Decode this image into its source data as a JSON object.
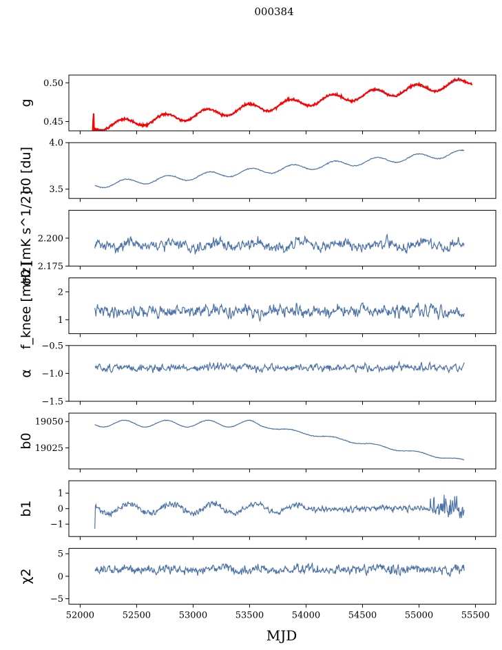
{
  "chart_data": {
    "type": "line",
    "title": "000384",
    "xlabel": "MJD",
    "xlim": [
      51900,
      55680
    ],
    "x_ticks": [
      52000,
      52500,
      53000,
      53500,
      54000,
      54500,
      55000,
      55500
    ],
    "x_tick_labels": [
      "52000",
      "52500",
      "53000",
      "53500",
      "54000",
      "54500",
      "55000",
      "55500"
    ],
    "line_color": "#4c72a8",
    "overlay_color": "#ff0000",
    "panels": [
      {
        "id": "g",
        "ylabel": "g",
        "ylim": [
          0.438,
          0.51
        ],
        "ticks": [
          0.45,
          0.5
        ],
        "tick_labels": [
          "0.45",
          "0.50"
        ],
        "series": [
          {
            "name": "model",
            "gen": "wave",
            "x0": 52120,
            "x1": 55400,
            "seed": 11,
            "p": {
              "a0": 0.442,
              "slope": 1.65e-05,
              "amp": 0.0055,
              "period": 370,
              "phase": 1.4,
              "noise": 0.0004
            }
          },
          {
            "name": "data",
            "gen": "wave",
            "x0": 52110,
            "x1": 55470,
            "seed": 12,
            "p": {
              "a0": 0.441,
              "slope": 1.72e-05,
              "amp": 0.0058,
              "period": 370,
              "phase": 1.4,
              "noise": 0.0012
            }
          }
        ]
      },
      {
        "id": "sigma0_du",
        "ylabel": "σ0 [du]",
        "ylim": [
          3.4,
          4.0
        ],
        "ticks": [
          3.5,
          4.0
        ],
        "tick_labels": [
          "3.5",
          "4.0"
        ],
        "series": [
          {
            "name": "sigma0_du",
            "gen": "wave",
            "x0": 52130,
            "x1": 55400,
            "seed": 21,
            "p": {
              "a0": 3.53,
              "slope": 0.000105,
              "amp": 0.035,
              "period": 370,
              "phase": 1.0,
              "noise": 0.004
            }
          }
        ]
      },
      {
        "id": "sigma0_mk",
        "ylabel": "σ0 [mK s^1/2]",
        "ylim": [
          2.175,
          2.225
        ],
        "ticks": [
          2.175,
          2.2
        ],
        "tick_labels": [
          "2.175",
          "2.200"
        ],
        "series": [
          {
            "name": "sigma0_mk",
            "gen": "noise",
            "x0": 52130,
            "x1": 55400,
            "seed": 31,
            "p": {
              "mean": 2.194,
              "sd": 0.0035,
              "amp": 0.002,
              "period": 370
            }
          }
        ]
      },
      {
        "id": "fknee",
        "ylabel": "f_knee [mHz]",
        "ylim": [
          0.5,
          2.5
        ],
        "ticks": [
          1,
          2
        ],
        "tick_labels": [
          "1",
          "2"
        ],
        "series": [
          {
            "name": "fknee",
            "gen": "noise",
            "x0": 52130,
            "x1": 55400,
            "seed": 41,
            "p": {
              "mean": 1.3,
              "sd": 0.16,
              "amp": 0,
              "period": 370
            }
          }
        ]
      },
      {
        "id": "alpha",
        "ylabel": "α",
        "ylim": [
          -1.5,
          -0.5
        ],
        "ticks": [
          -1.5,
          -1.0,
          -0.5
        ],
        "tick_labels": [
          "−1.5",
          "−1.0",
          "−0.5"
        ],
        "series": [
          {
            "name": "alpha",
            "gen": "noise",
            "x0": 52130,
            "x1": 55400,
            "seed": 51,
            "p": {
              "mean": -0.9,
              "sd": 0.05,
              "amp": 0,
              "period": 370
            }
          }
        ]
      },
      {
        "id": "b0",
        "ylabel": "b0",
        "ylim": [
          19005,
          19058
        ],
        "ticks": [
          19025,
          19050
        ],
        "tick_labels": [
          "19025",
          "19050"
        ],
        "series": [
          {
            "name": "b0",
            "gen": "b0",
            "x0": 52130,
            "x1": 55400,
            "seed": 61,
            "p": {}
          }
        ]
      },
      {
        "id": "b1",
        "ylabel": "b1",
        "ylim": [
          -1.8,
          1.8
        ],
        "ticks": [
          -1,
          0,
          1
        ],
        "tick_labels": [
          "−1",
          "0",
          "1"
        ],
        "series": [
          {
            "name": "b1",
            "gen": "b1",
            "x0": 52130,
            "x1": 55400,
            "seed": 71,
            "p": {}
          }
        ]
      },
      {
        "id": "chi2",
        "ylabel": "χ2",
        "ylim": [
          -6.2,
          6.2
        ],
        "ticks": [
          -5,
          0,
          5
        ],
        "tick_labels": [
          "−5",
          "0",
          "5"
        ],
        "series": [
          {
            "name": "chi2",
            "gen": "noise",
            "x0": 52130,
            "x1": 55400,
            "seed": 81,
            "p": {
              "mean": 1.5,
              "sd": 0.8,
              "amp": 0.2,
              "period": 370
            }
          }
        ]
      }
    ]
  }
}
